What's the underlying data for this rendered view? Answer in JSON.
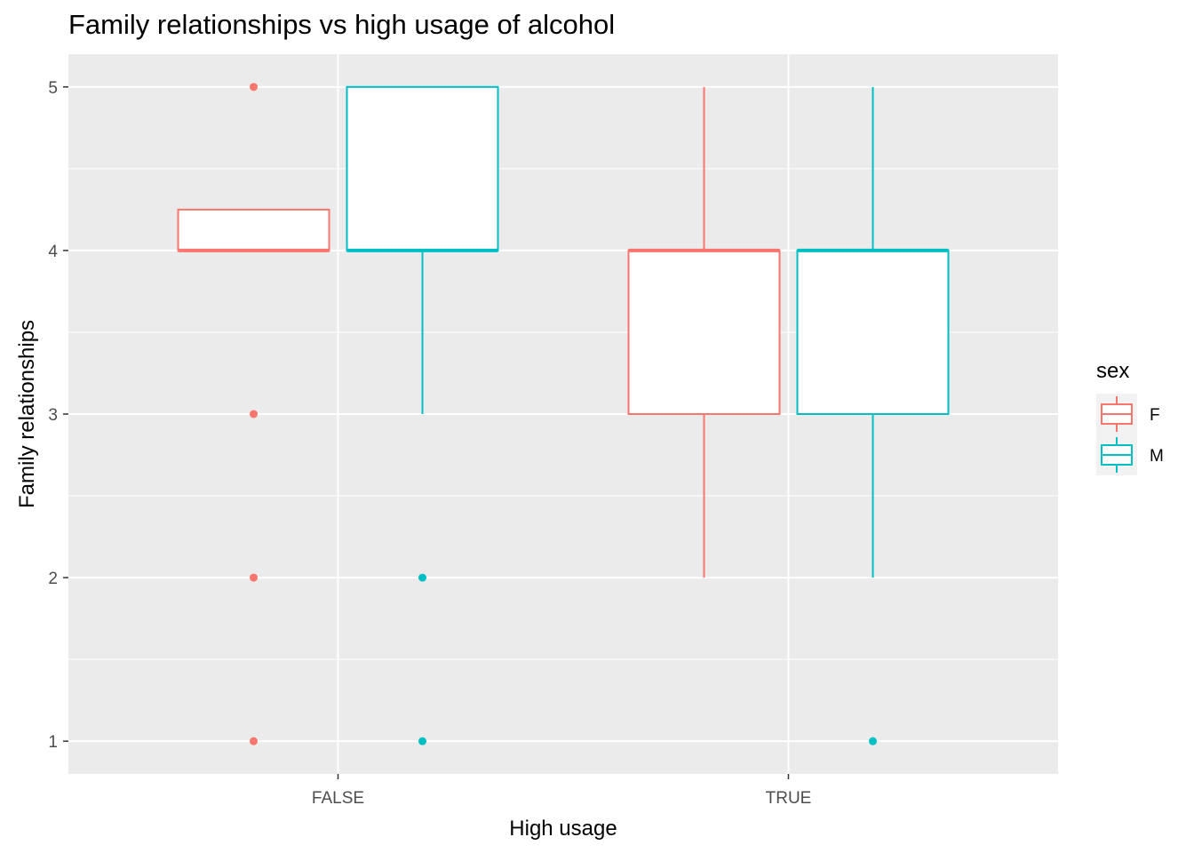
{
  "chart_data": {
    "type": "box",
    "title": "Family relationships vs high usage of alcohol",
    "xlabel": "High usage",
    "ylabel": "Family relationships",
    "categories": [
      "FALSE",
      "TRUE"
    ],
    "ylim": [
      0.8,
      5.2
    ],
    "yticks": [
      1,
      2,
      3,
      4,
      5
    ],
    "legend": {
      "title": "sex",
      "position": "right"
    },
    "grid": true,
    "series": [
      {
        "name": "F",
        "color": "#F8766D",
        "boxes": [
          {
            "category": "FALSE",
            "min": 4,
            "q1": 4,
            "median": 4,
            "q3": 4.25,
            "max": 4.25,
            "outliers": [
              5,
              3,
              2,
              1
            ]
          },
          {
            "category": "TRUE",
            "min": 2,
            "q1": 3,
            "median": 4,
            "q3": 4,
            "max": 5,
            "outliers": []
          }
        ]
      },
      {
        "name": "M",
        "color": "#00BFC4",
        "boxes": [
          {
            "category": "FALSE",
            "min": 3,
            "q1": 4,
            "median": 4,
            "q3": 5,
            "max": 5,
            "outliers": [
              2,
              1
            ]
          },
          {
            "category": "TRUE",
            "min": 2,
            "q1": 3,
            "median": 4,
            "q3": 4,
            "max": 5,
            "outliers": [
              1
            ]
          }
        ]
      }
    ]
  }
}
